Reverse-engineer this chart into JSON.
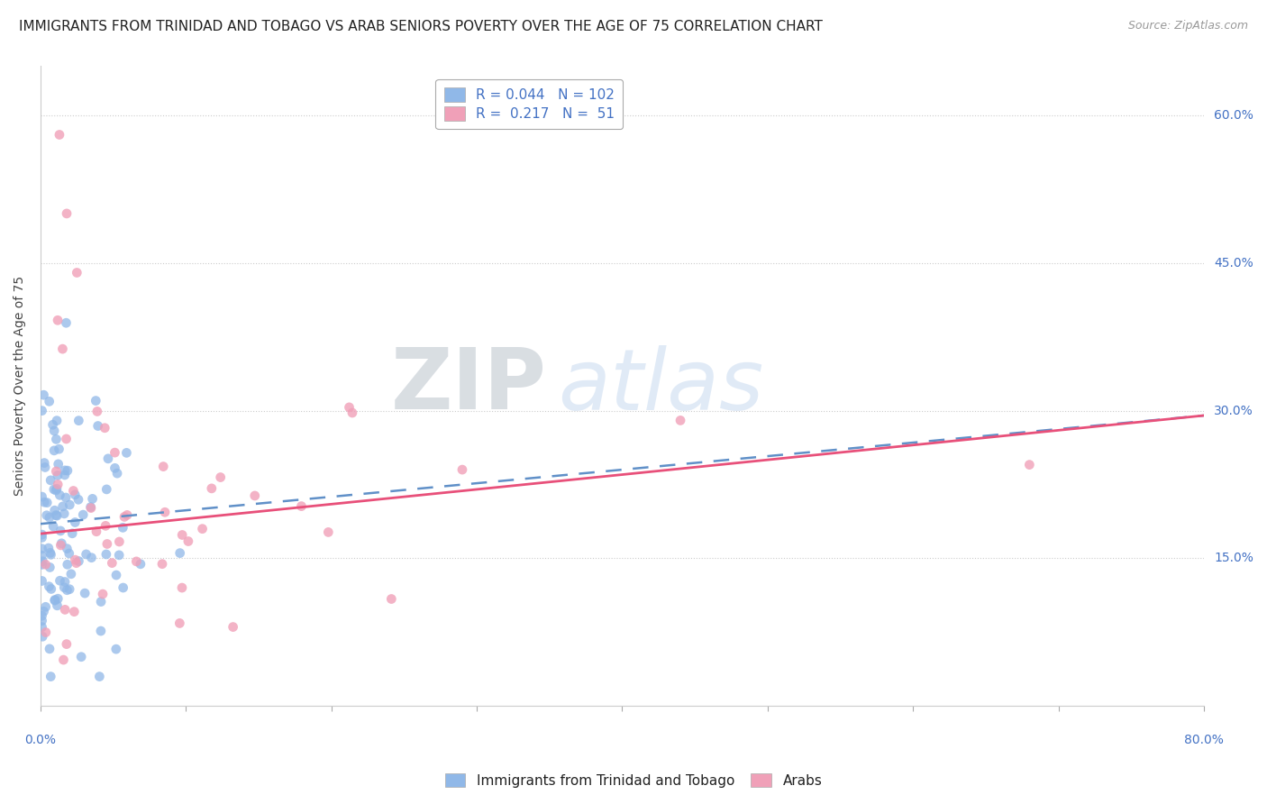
{
  "title": "IMMIGRANTS FROM TRINIDAD AND TOBAGO VS ARAB SENIORS POVERTY OVER THE AGE OF 75 CORRELATION CHART",
  "source": "Source: ZipAtlas.com",
  "ylabel": "Seniors Poverty Over the Age of 75",
  "xlim": [
    0.0,
    0.8
  ],
  "ylim": [
    0.0,
    0.65
  ],
  "ytick_vals": [
    0.15,
    0.3,
    0.45,
    0.6
  ],
  "ytick_labels": [
    "15.0%",
    "30.0%",
    "45.0%",
    "60.0%"
  ],
  "blue_R": 0.044,
  "blue_N": 102,
  "pink_R": 0.217,
  "pink_N": 51,
  "blue_color": "#90b8e8",
  "pink_color": "#f0a0b8",
  "blue_line_color": "#6090c8",
  "pink_line_color": "#e8507a",
  "watermark_ZIP": "ZIP",
  "watermark_atlas": "atlas",
  "background_color": "#ffffff",
  "title_fontsize": 11,
  "source_fontsize": 9,
  "legend_label_blue": "Immigrants from Trinidad and Tobago",
  "legend_label_pink": "Arabs",
  "blue_line_start_y": 0.185,
  "blue_line_end_y": 0.295,
  "pink_line_start_y": 0.175,
  "pink_line_end_y": 0.295
}
